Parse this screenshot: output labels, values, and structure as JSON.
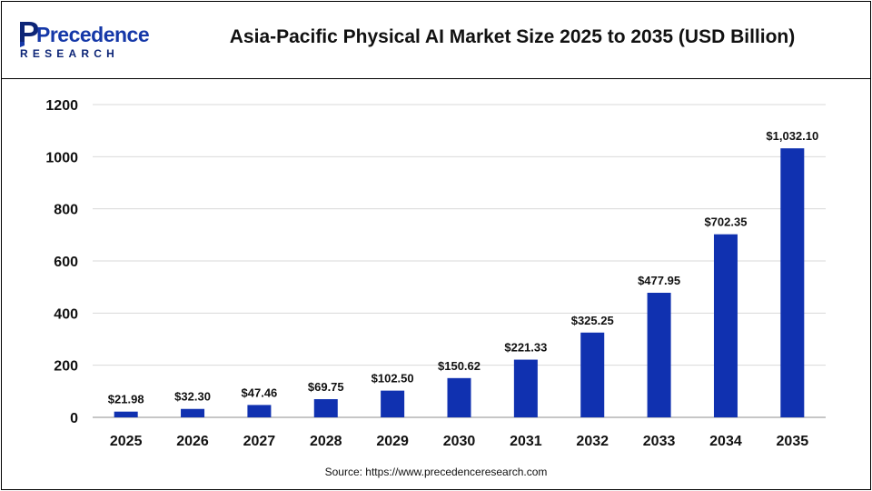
{
  "header": {
    "logo_main": "Precedence",
    "logo_sub": "RESEARCH",
    "title": "Asia-Pacific Physical AI Market Size 2025 to 2035 (USD Billion)"
  },
  "source": "Source: https://www.precedenceresearch.com",
  "colors": {
    "bar": "#1031b0",
    "gridline": "#d9d9d9",
    "logo_blue": "#1538a8",
    "logo_navy": "#0d2577"
  },
  "chart_data": {
    "type": "bar",
    "title": "Asia-Pacific Physical AI Market Size 2025 to 2035 (USD Billion)",
    "xlabel": "",
    "ylabel": "",
    "categories": [
      "2025",
      "2026",
      "2027",
      "2028",
      "2029",
      "2030",
      "2031",
      "2032",
      "2033",
      "2034",
      "2035"
    ],
    "values": [
      21.98,
      32.3,
      47.46,
      69.75,
      102.5,
      150.62,
      221.33,
      325.25,
      477.95,
      702.35,
      1032.1
    ],
    "data_labels": [
      "$21.98",
      "$32.30",
      "$47.46",
      "$69.75",
      "$102.50",
      "$150.62",
      "$221.33",
      "$325.25",
      "$477.95",
      "$702.35",
      "$1,032.10"
    ],
    "ylim": [
      0,
      1200
    ],
    "yticks": [
      0,
      200,
      400,
      600,
      800,
      1000,
      1200
    ],
    "grid": true,
    "legend": "none"
  }
}
